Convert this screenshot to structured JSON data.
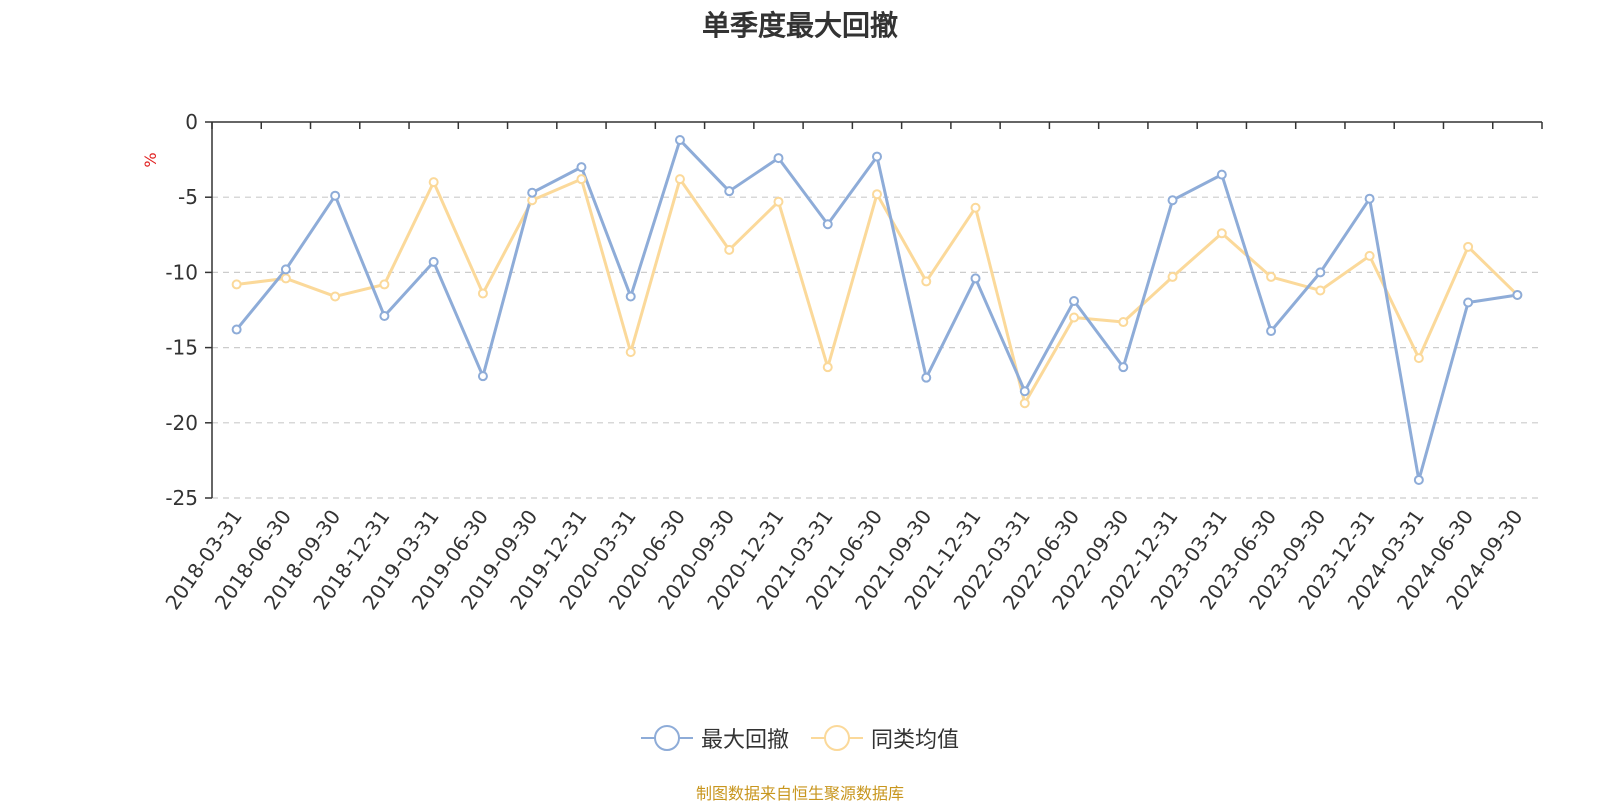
{
  "chart_data": {
    "type": "line",
    "title": "单季度最大回撤",
    "ylabel": "%",
    "ylim": [
      -25,
      0
    ],
    "yticks": [
      0,
      -5,
      -10,
      -15,
      -20,
      -25
    ],
    "grid": true,
    "legend_position": "bottom-center",
    "categories": [
      "2018-03-31",
      "2018-06-30",
      "2018-09-30",
      "2018-12-31",
      "2019-03-31",
      "2019-06-30",
      "2019-09-30",
      "2019-12-31",
      "2020-03-31",
      "2020-06-30",
      "2020-09-30",
      "2020-12-31",
      "2021-03-31",
      "2021-06-30",
      "2021-09-30",
      "2021-12-31",
      "2022-03-31",
      "2022-06-30",
      "2022-09-30",
      "2022-12-31",
      "2023-03-31",
      "2023-06-30",
      "2023-09-30",
      "2023-12-31",
      "2024-03-31",
      "2024-06-30",
      "2024-09-30"
    ],
    "series": [
      {
        "name": "最大回撤",
        "color": "#8eacd8",
        "values": [
          -13.8,
          -9.8,
          -4.9,
          -12.9,
          -9.3,
          -16.9,
          -4.7,
          -3.0,
          -11.6,
          -1.2,
          -4.6,
          -2.4,
          -6.8,
          -2.3,
          -17.0,
          -10.4,
          -17.9,
          -11.9,
          -16.3,
          -5.2,
          -3.5,
          -13.9,
          -10.0,
          -5.1,
          -23.8,
          -12.0,
          -11.5
        ]
      },
      {
        "name": "同类均值",
        "color": "#fbd99a",
        "values": [
          -10.8,
          -10.4,
          -11.6,
          -10.8,
          -4.0,
          -11.4,
          -5.2,
          -3.8,
          -15.3,
          -3.8,
          -8.5,
          -5.3,
          -16.3,
          -4.8,
          -10.6,
          -5.7,
          -18.7,
          -13.0,
          -13.3,
          -10.3,
          -7.4,
          -10.3,
          -11.2,
          -8.9,
          -15.7,
          -8.3,
          -11.5
        ]
      }
    ]
  },
  "source_note": "制图数据来自恒生聚源数据库",
  "colors": {
    "axis": "#333333",
    "grid": "#cccccc",
    "ylabel": "#e02020",
    "source_note": "#c8961e"
  }
}
